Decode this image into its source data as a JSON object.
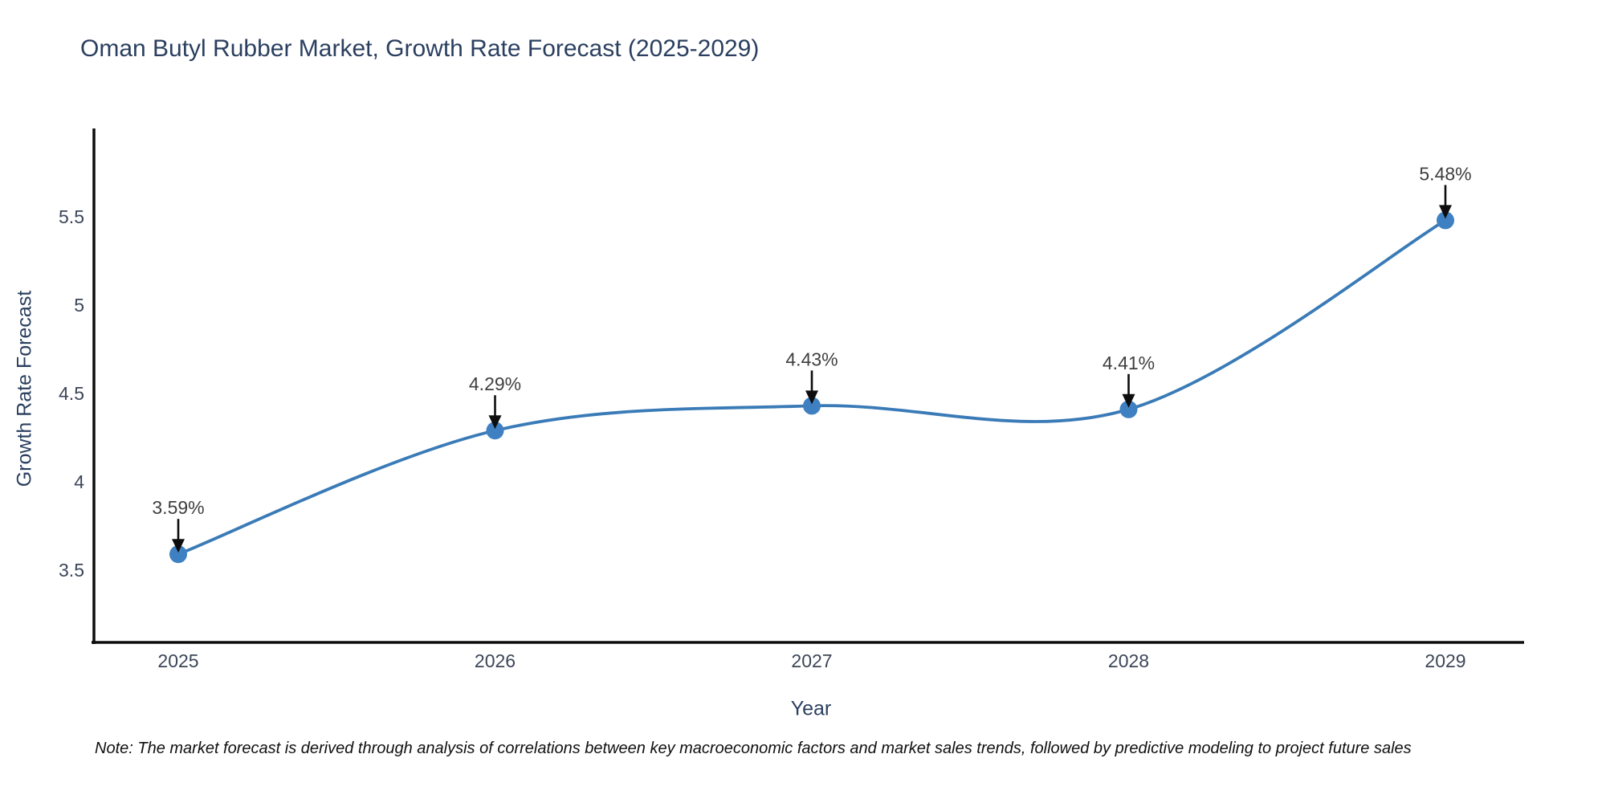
{
  "title": "Oman Butyl Rubber Market, Growth Rate Forecast (2025-2029)",
  "note": "Note: The market forecast is derived through analysis of correlations between key macroeconomic factors and market sales trends, followed by predictive modeling to project future sales",
  "chart_data": {
    "type": "line",
    "title": "Oman Butyl Rubber Market, Growth Rate Forecast (2025-2029)",
    "xlabel": "Year",
    "ylabel": "Growth Rate Forecast",
    "categories": [
      "2025",
      "2026",
      "2027",
      "2028",
      "2029"
    ],
    "values": [
      3.59,
      4.29,
      4.43,
      4.41,
      5.48
    ],
    "point_labels": [
      "3.59%",
      "4.29%",
      "4.43%",
      "4.41%",
      "5.48%"
    ],
    "yticks": [
      3.5,
      4,
      4.5,
      5,
      5.5
    ],
    "ylim": [
      3.09,
      6.0
    ],
    "grid": false,
    "legend": "none",
    "smooth": true,
    "annotation_arrows": true,
    "colors": {
      "line": "#3a7bb7",
      "marker": "#3e80c1",
      "axis": "#0d0d0d",
      "title_text": "#2a3f5f",
      "tick_text": "#3c4658",
      "annotation_text": "#3f3f3f",
      "background": "#ffffff"
    }
  }
}
